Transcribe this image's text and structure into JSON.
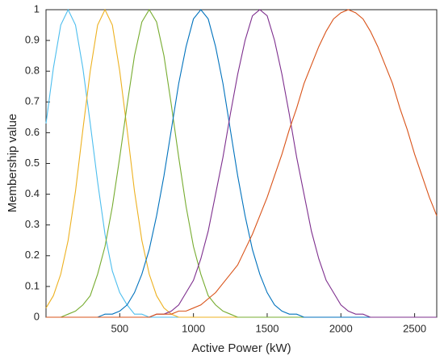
{
  "chart_data": {
    "type": "line",
    "x_label": "Active Power (kW)",
    "y_label": "Membership value",
    "x": [
      0,
      50,
      100,
      150,
      200,
      250,
      300,
      350,
      400,
      450,
      500,
      550,
      600,
      650,
      700,
      750,
      800,
      850,
      900,
      950,
      1000,
      1050,
      1100,
      1150,
      1200,
      1250,
      1300,
      1350,
      1400,
      1450,
      1500,
      1550,
      1600,
      1650,
      1700,
      1750,
      1800,
      1850,
      1900,
      1950,
      2000,
      2050,
      2100,
      2150,
      2200,
      2250,
      2300,
      2350,
      2400,
      2450,
      2500,
      2550,
      2600,
      2650
    ],
    "series": [
      {
        "color": "#4dbeee",
        "values": [
          0.63,
          0.81,
          0.95,
          1,
          0.95,
          0.81,
          0.63,
          0.44,
          0.27,
          0.15,
          0.08,
          0.04,
          0.01,
          0.01,
          0,
          0,
          0,
          0,
          0,
          0,
          0,
          0,
          0,
          0,
          0,
          0,
          0,
          0,
          0,
          0,
          0,
          0,
          0,
          0,
          0,
          0,
          0,
          0,
          0,
          0,
          0,
          0,
          0,
          0,
          0,
          0,
          0,
          0,
          0,
          0,
          0,
          0,
          0,
          0
        ]
      },
      {
        "color": "#edb120",
        "values": [
          0.03,
          0.07,
          0.14,
          0.25,
          0.41,
          0.61,
          0.8,
          0.95,
          1,
          0.95,
          0.8,
          0.61,
          0.41,
          0.25,
          0.14,
          0.07,
          0.03,
          0.01,
          0,
          0,
          0,
          0,
          0,
          0,
          0,
          0,
          0,
          0,
          0,
          0,
          0,
          0,
          0,
          0,
          0,
          0,
          0,
          0,
          0,
          0,
          0,
          0,
          0,
          0,
          0,
          0,
          0,
          0,
          0,
          0,
          0,
          0,
          0,
          0
        ]
      },
      {
        "color": "#77ac30",
        "values": [
          0,
          0,
          0,
          0.01,
          0.02,
          0.04,
          0.07,
          0.14,
          0.23,
          0.36,
          0.52,
          0.69,
          0.85,
          0.96,
          1,
          0.96,
          0.85,
          0.69,
          0.52,
          0.36,
          0.23,
          0.14,
          0.07,
          0.04,
          0.02,
          0.01,
          0,
          0,
          0,
          0,
          0,
          0,
          0,
          0,
          0,
          0,
          0,
          0,
          0,
          0,
          0,
          0,
          0,
          0,
          0,
          0,
          0,
          0,
          0,
          0,
          0,
          0,
          0,
          0
        ]
      },
      {
        "color": "#0072bd",
        "values": [
          0,
          0,
          0,
          0,
          0,
          0,
          0,
          0,
          0.01,
          0.01,
          0.02,
          0.04,
          0.08,
          0.14,
          0.22,
          0.33,
          0.46,
          0.61,
          0.76,
          0.88,
          0.97,
          1,
          0.97,
          0.88,
          0.76,
          0.61,
          0.46,
          0.33,
          0.22,
          0.14,
          0.08,
          0.04,
          0.02,
          0.01,
          0.01,
          0,
          0,
          0,
          0,
          0,
          0,
          0,
          0,
          0,
          0,
          0,
          0,
          0,
          0,
          0,
          0,
          0,
          0,
          0
        ]
      },
      {
        "color": "#7e2f8e",
        "values": [
          0,
          0,
          0,
          0,
          0,
          0,
          0,
          0,
          0,
          0,
          0,
          0,
          0,
          0,
          0,
          0.01,
          0.01,
          0.02,
          0.04,
          0.08,
          0.12,
          0.19,
          0.28,
          0.4,
          0.52,
          0.66,
          0.79,
          0.9,
          0.98,
          1,
          0.98,
          0.9,
          0.79,
          0.66,
          0.52,
          0.4,
          0.28,
          0.19,
          0.12,
          0.08,
          0.04,
          0.02,
          0.01,
          0.01,
          0,
          0,
          0,
          0,
          0,
          0,
          0,
          0,
          0,
          0
        ]
      },
      {
        "color": "#d95319",
        "values": [
          0,
          0,
          0,
          0,
          0,
          0,
          0,
          0,
          0,
          0,
          0,
          0,
          0,
          0,
          0,
          0.01,
          0.01,
          0.01,
          0.02,
          0.02,
          0.03,
          0.04,
          0.06,
          0.08,
          0.11,
          0.14,
          0.17,
          0.22,
          0.27,
          0.33,
          0.39,
          0.46,
          0.53,
          0.61,
          0.68,
          0.76,
          0.82,
          0.88,
          0.93,
          0.97,
          0.99,
          1,
          0.99,
          0.97,
          0.93,
          0.88,
          0.82,
          0.76,
          0.68,
          0.61,
          0.53,
          0.46,
          0.39,
          0.33
        ]
      }
    ],
    "xlim": [
      0,
      2650
    ],
    "xticks": [
      500,
      1000,
      1500,
      2000,
      2500
    ],
    "ylim": [
      0,
      1
    ],
    "yticks": [
      0,
      0.1,
      0.2,
      0.3,
      0.4,
      0.5,
      0.6,
      0.7,
      0.8,
      0.9,
      1
    ],
    "grid": false
  }
}
